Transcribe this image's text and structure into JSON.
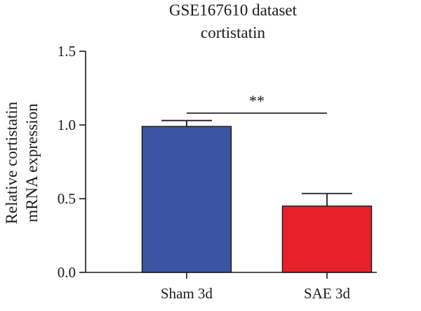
{
  "chart_data": {
    "type": "bar",
    "title_lines": [
      "GSE167610 dataset",
      "cortistatin"
    ],
    "ylabel_lines": [
      "Relative cortistatin",
      "mRNA expression"
    ],
    "xlabel": "",
    "categories": [
      "Sham 3d",
      "SAE 3d"
    ],
    "values": [
      0.99,
      0.45
    ],
    "errors": [
      0.04,
      0.085
    ],
    "bar_colors": [
      "#3a55a4",
      "#e8202a"
    ],
    "ylim": [
      0,
      1.5
    ],
    "yticks": [
      0.0,
      0.5,
      1.0,
      1.5
    ],
    "ytick_labels": [
      "0.0",
      "0.5",
      "1.0",
      "1.5"
    ],
    "significance": {
      "between": [
        "Sham 3d",
        "SAE 3d"
      ],
      "label": "**",
      "y": 1.08
    },
    "grid": false,
    "legend": "none"
  }
}
